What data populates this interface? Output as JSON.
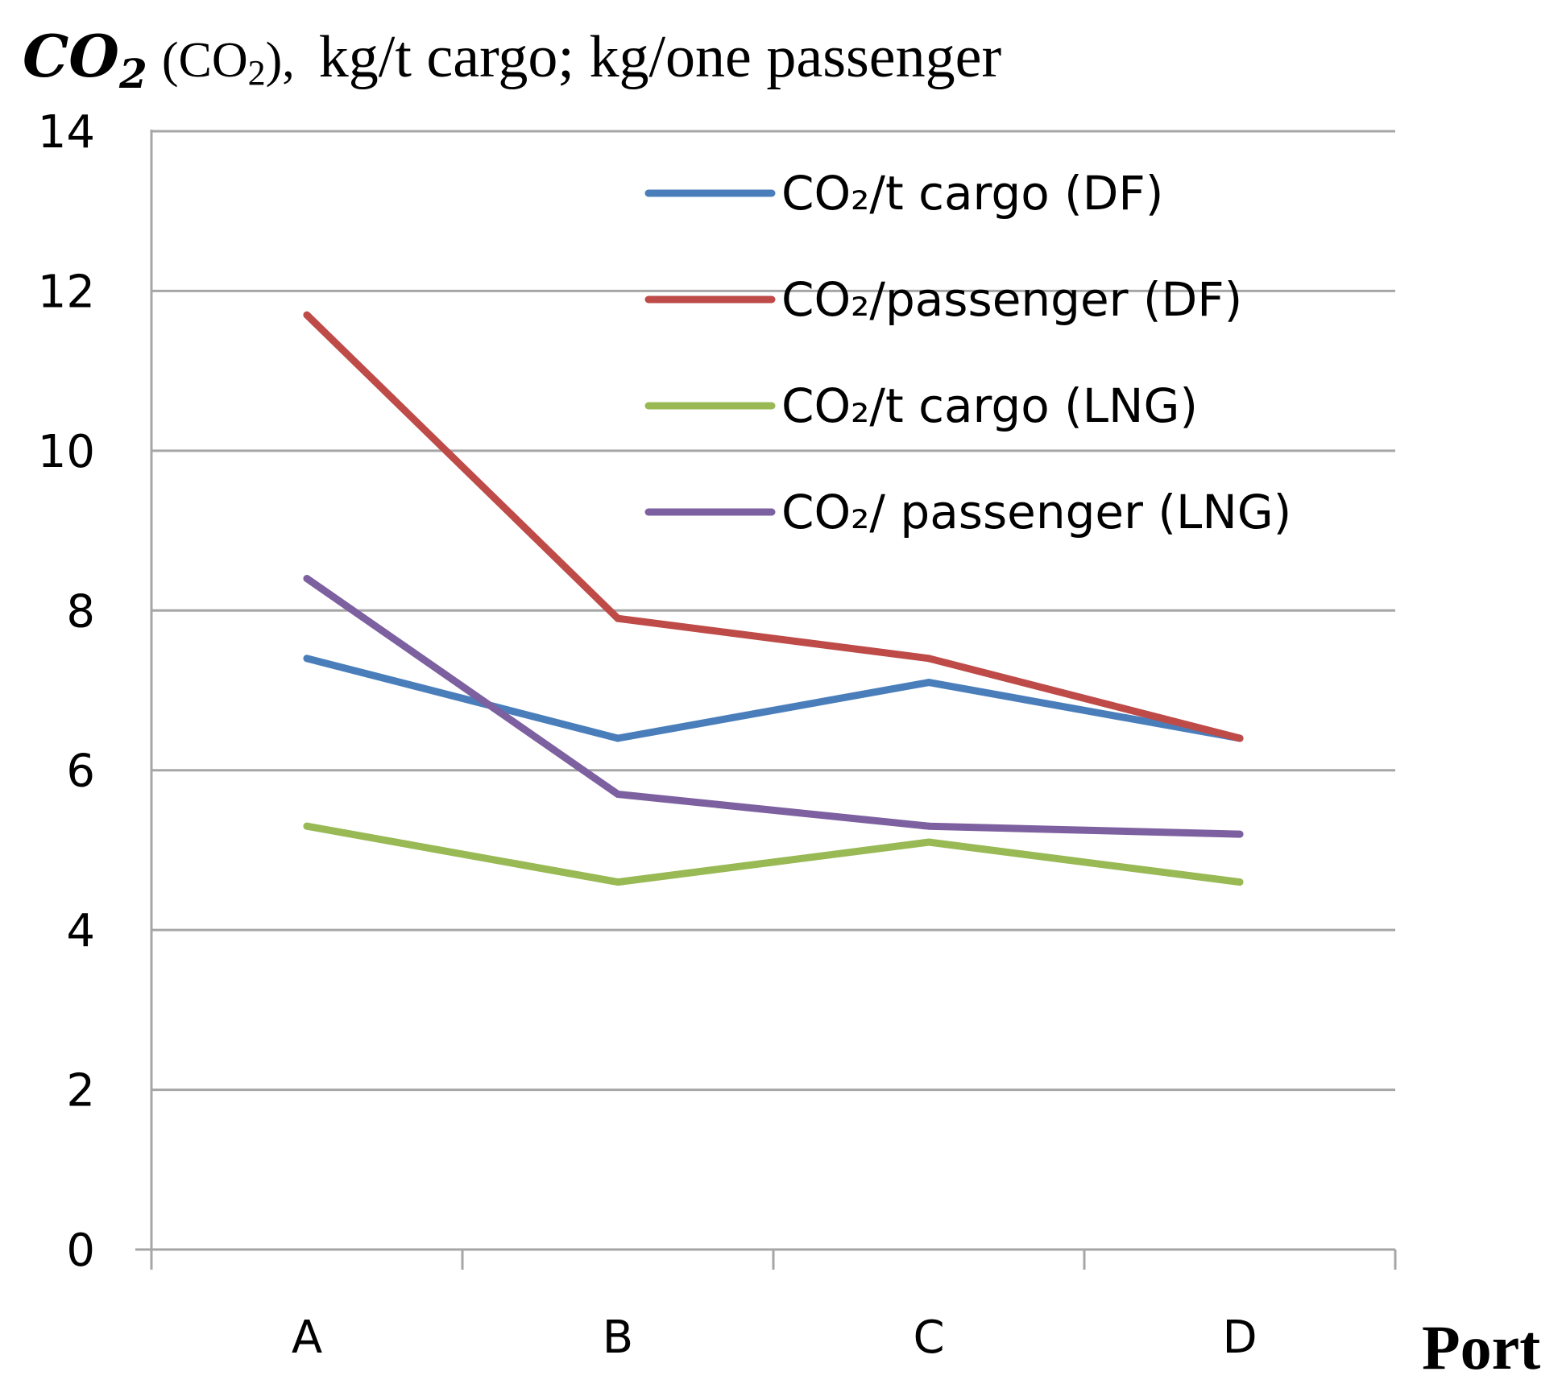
{
  "chart_data": {
    "type": "line",
    "title": {
      "symbol": "CO",
      "symbol_sub": "2",
      "paren_text": "(CO",
      "paren_sub": "2",
      "paren_close": "),",
      "units": "kg/t cargo; kg/one passenger"
    },
    "xlabel": "Port",
    "ylabel": "",
    "categories": [
      "A",
      "B",
      "C",
      "D"
    ],
    "ylim": [
      0,
      14
    ],
    "yticks": [
      0,
      2,
      4,
      6,
      8,
      10,
      12,
      14
    ],
    "grid": true,
    "legend_position": "top-right",
    "series": [
      {
        "name": "CO₂/t cargo (DF)",
        "color": "#4a7ebb",
        "values": [
          7.4,
          6.4,
          7.1,
          6.4
        ]
      },
      {
        "name": "CO₂/passenger (DF)",
        "color": "#be4b48",
        "values": [
          11.7,
          7.9,
          7.4,
          6.4
        ]
      },
      {
        "name": "CO₂/t cargo (LNG)",
        "color": "#98b954",
        "values": [
          5.3,
          4.6,
          5.1,
          4.6
        ]
      },
      {
        "name": "CO₂/ passenger (LNG)",
        "color": "#7d60a0",
        "values": [
          8.4,
          5.7,
          5.3,
          5.2
        ]
      }
    ]
  }
}
